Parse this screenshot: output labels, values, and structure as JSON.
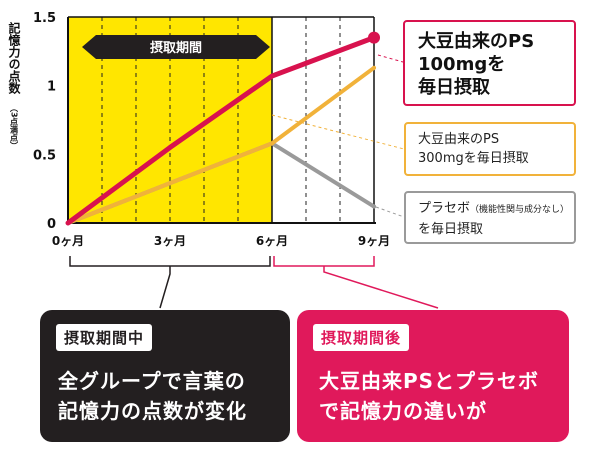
{
  "chart_data": {
    "type": "line",
    "ylabel": "記憶力の点数",
    "ylabel_sub": "（3点満点）",
    "x": [
      "0ヶ月",
      "3ヶ月",
      "6ヶ月",
      "9ヶ月"
    ],
    "x_months": [
      0,
      3,
      6,
      9
    ],
    "yticks": [
      "0",
      "0.5",
      "1",
      "1.5"
    ],
    "ylim": [
      0,
      1.5
    ],
    "grid": "vertical dashed lines",
    "intake_period_label": "摂取期間",
    "intake_period_months": [
      0,
      6
    ],
    "series": [
      {
        "name": "大豆由来のPS 100mgを毎日摂取",
        "color": "#d8124e",
        "values": [
          0,
          0.55,
          1.07,
          1.35
        ]
      },
      {
        "name": "大豆由来のPS 300mgを毎日摂取",
        "color": "#f1b23a",
        "values": [
          0,
          0.29,
          0.58,
          1.13
        ]
      },
      {
        "name": "プラセボ（機能性関与成分なし）を毎日摂取",
        "color": "#9a9a9a",
        "values": [
          0,
          0.29,
          0.58,
          0.12
        ]
      }
    ]
  },
  "legend": {
    "ps100_line1": "大豆由来のPS",
    "ps100_line2": "100mgを",
    "ps100_line3": "毎日摂取",
    "ps300_line1": "大豆由来のPS",
    "ps300_line2": "300mgを毎日摂取",
    "placebo_main": "プラセボ",
    "placebo_note": "（機能性関与成分なし）",
    "placebo_line2": "を毎日摂取"
  },
  "during_box": {
    "tag": "摂取期間中",
    "line1": "全グループで言葉の",
    "line2": "記憶力の点数が変化",
    "color": "#231f20"
  },
  "after_box": {
    "tag": "摂取期間後",
    "line1": "大豆由来PSとプラセボ",
    "line2": "で記憶力の違いが",
    "color": "#e0195b"
  }
}
